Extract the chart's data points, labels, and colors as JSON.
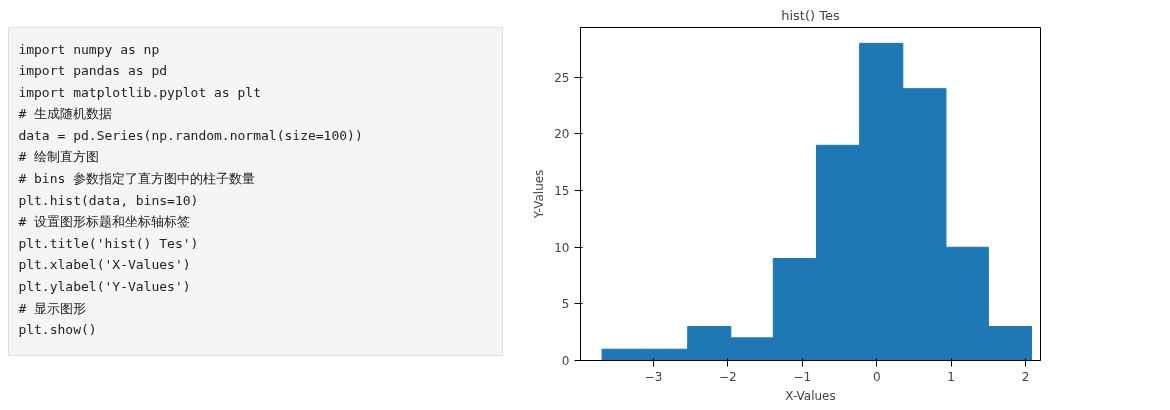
{
  "chart_data": [
    {
      "type": "other",
      "annotations": [
        "import numpy as np",
        "import pandas as pd",
        "import matplotlib.pyplot as plt",
        "# 生成随机数据",
        "data = pd.Series(np.random.normal(size=100))",
        "# 绘制直方图",
        "# bins 参数指定了直方图中的柱子数量",
        "plt.hist(data, bins=10)",
        "# 设置图形标题和坐标轴标签",
        "plt.title('hist() Tes')",
        "plt.xlabel('X-Values')",
        "plt.ylabel('Y-Values')",
        "# 显示图形",
        "plt.show()"
      ]
    },
    {
      "type": "histogram",
      "title": "hist() Tes",
      "xlabel": "X-Values",
      "ylabel": "Y-Values",
      "color": "#1f77b4",
      "bins": [
        -3.69,
        -3.115,
        -2.54,
        -1.96,
        -1.39,
        -0.81,
        -0.23,
        0.35,
        0.93,
        1.5,
        2.08
      ],
      "values": [
        1,
        1,
        3,
        2,
        9,
        19,
        28,
        24,
        10,
        3
      ],
      "xlim": [
        -3.98,
        2.2
      ],
      "xticks": [
        -3,
        -2,
        -1,
        0,
        1,
        2
      ],
      "ylim": [
        0,
        29.4
      ],
      "yticks": [
        0,
        5,
        10,
        15,
        20,
        25
      ],
      "grid": false
    }
  ]
}
